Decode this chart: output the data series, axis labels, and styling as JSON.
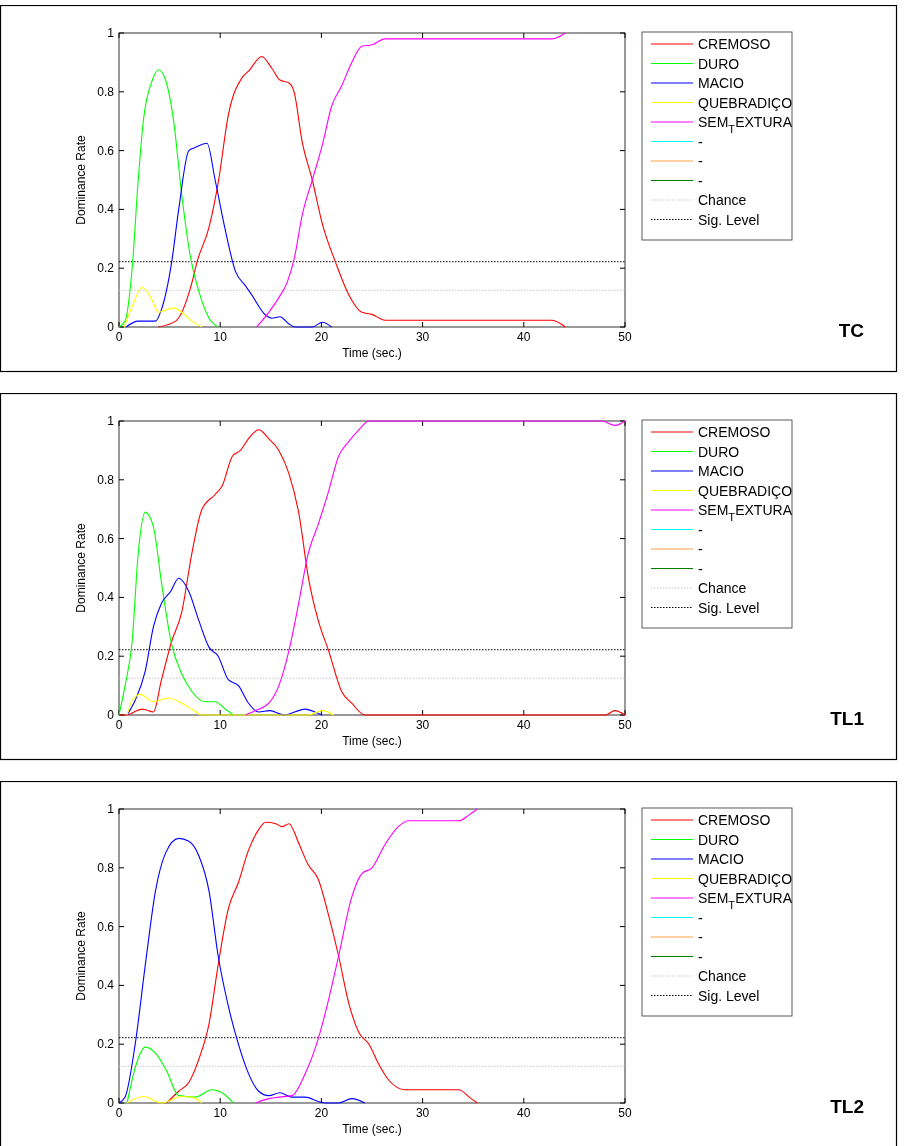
{
  "chart_data": [
    {
      "type": "line",
      "annotations": [
        "TC"
      ],
      "xlabel": "Time (sec.)",
      "ylabel": "Dominance Rate",
      "xlim": [
        0,
        50
      ],
      "ylim": [
        0,
        1
      ],
      "xticks": [
        0,
        10,
        20,
        30,
        40,
        50
      ],
      "yticks": [
        0,
        0.2,
        0.4,
        0.6,
        0.8,
        1
      ],
      "legend": "right",
      "grid": false,
      "marker": "none",
      "line_style": "solid",
      "ref_lines": [
        {
          "axis": "y",
          "value": 0.125,
          "label": "Chance",
          "color": "#c8c8c8",
          "line_style": "dotted"
        },
        {
          "axis": "y",
          "value": 0.222,
          "label": "Sig. Level",
          "color": "#000000",
          "line_style": "dotted"
        }
      ],
      "series": [
        {
          "name": "CREMOSO",
          "color": "#ff0000",
          "x": [
            3.9,
            5.6,
            7.2,
            7.7,
            8.9,
            9.8,
            10.8,
            12.2,
            12.8,
            14.1,
            15.1,
            15.9,
            16.8,
            17.3,
            18.1,
            19.1,
            20.1,
            21.4,
            22.7,
            24,
            25,
            26.3,
            42.8,
            44.1
          ],
          "values": [
            0,
            0.02,
            0.15,
            0.22,
            0.34,
            0.49,
            0.72,
            0.85,
            0.87,
            0.92,
            0.88,
            0.84,
            0.83,
            0.8,
            0.63,
            0.5,
            0.35,
            0.22,
            0.11,
            0.05,
            0.043,
            0.023,
            0.023,
            0
          ]
        },
        {
          "name": "DURO",
          "color": "#00ff00",
          "x": [
            0,
            0.6,
            1.3,
            1.9,
            2.4,
            3.3,
            3.9,
            4.6,
            5.4,
            6.2,
            7,
            7.9,
            8.9,
            9.8
          ],
          "values": [
            0,
            0.02,
            0.2,
            0.5,
            0.7,
            0.84,
            0.875,
            0.84,
            0.7,
            0.45,
            0.25,
            0.12,
            0.03,
            0
          ]
        },
        {
          "name": "MACIO",
          "color": "#0000ff",
          "x": [
            0.7,
            1.9,
            3.6,
            4.2,
            5.2,
            5.9,
            6.9,
            7.5,
            8.7,
            9.5,
            10.5,
            11.5,
            12.5,
            13.1,
            14.5,
            15.1,
            15.9,
            16.8,
            17.4,
            19.1,
            20.1,
            21
          ],
          "values": [
            0,
            0.02,
            0.02,
            0.06,
            0.22,
            0.4,
            0.6,
            0.61,
            0.625,
            0.5,
            0.33,
            0.19,
            0.14,
            0.11,
            0.04,
            0.03,
            0.035,
            0.01,
            0,
            0,
            0.016,
            0
          ]
        },
        {
          "name": "QUEBRADIÇO",
          "color": "#ffff00",
          "x": [
            0.5,
            1.3,
            2.3,
            3.3,
            3.9,
            5.4,
            6.2,
            7.2,
            8.2
          ],
          "values": [
            0,
            0.07,
            0.135,
            0.09,
            0.05,
            0.065,
            0.05,
            0.02,
            0
          ]
        },
        {
          "name": "SEM$_{T}$EXTURA",
          "color": "#ff00ff",
          "x": [
            13.6,
            14.8,
            15.8,
            16.6,
            17.3,
            18.1,
            19.1,
            20.1,
            21,
            22,
            23,
            24,
            25,
            26.3,
            42.8,
            44.1
          ],
          "values": [
            0,
            0.05,
            0.1,
            0.15,
            0.23,
            0.38,
            0.5,
            0.62,
            0.75,
            0.82,
            0.9,
            0.955,
            0.96,
            0.98,
            0.98,
            1
          ]
        },
        {
          "name": "-",
          "color": "#00ffff"
        },
        {
          "name": "-",
          "color": "#ffa040"
        },
        {
          "name": "-",
          "color": "#008000"
        }
      ]
    },
    {
      "type": "line",
      "annotations": [
        "TL1"
      ],
      "xlabel": "Time (sec.)",
      "ylabel": "Dominance Rate",
      "xlim": [
        0,
        50
      ],
      "ylim": [
        0,
        1
      ],
      "xticks": [
        0,
        10,
        20,
        30,
        40,
        50
      ],
      "yticks": [
        0,
        0.2,
        0.4,
        0.6,
        0.8,
        1
      ],
      "legend": "right",
      "grid": false,
      "marker": "none",
      "line_style": "solid",
      "ref_lines": [
        {
          "axis": "y",
          "value": 0.125,
          "label": "Chance",
          "color": "#c8c8c8",
          "line_style": "dotted"
        },
        {
          "axis": "y",
          "value": 0.222,
          "label": "Sig. Level",
          "color": "#000000",
          "line_style": "dotted"
        }
      ],
      "series": [
        {
          "name": "CREMOSO",
          "color": "#ff0000",
          "x": [
            0,
            0.7,
            2.3,
            3.4,
            4.2,
            5.2,
            6.2,
            7.2,
            8.2,
            9.5,
            10.2,
            11.2,
            12,
            12.8,
            13.8,
            14.8,
            15.8,
            16.8,
            17.8,
            18.7,
            19.7,
            20.7,
            22,
            23,
            24.3,
            48.1,
            49,
            50
          ],
          "values": [
            0,
            0,
            0.02,
            0.01,
            0.12,
            0.25,
            0.35,
            0.55,
            0.7,
            0.75,
            0.78,
            0.88,
            0.9,
            0.94,
            0.97,
            0.94,
            0.9,
            0.82,
            0.68,
            0.47,
            0.32,
            0.22,
            0.08,
            0.04,
            0,
            0,
            0.015,
            0
          ]
        },
        {
          "name": "DURO",
          "color": "#00ff00",
          "x": [
            0,
            0.6,
            1.3,
            1.9,
            2.6,
            3.4,
            4.2,
            5.2,
            6.2,
            7.2,
            8.5,
            9.5,
            10.5,
            11.3
          ],
          "values": [
            0,
            0.1,
            0.25,
            0.55,
            0.69,
            0.64,
            0.45,
            0.24,
            0.14,
            0.08,
            0.045,
            0.045,
            0.02,
            0
          ]
        },
        {
          "name": "MACIO",
          "color": "#0000ff",
          "x": [
            0.8,
            1.6,
            2.6,
            3.4,
            4.2,
            5.1,
            5.9,
            6.9,
            7.9,
            8.9,
            9.8,
            10.8,
            11.8,
            12.8,
            13.8,
            14.9,
            16.3,
            18.4,
            19.7,
            20.1
          ],
          "values": [
            0,
            0.05,
            0.15,
            0.3,
            0.38,
            0.42,
            0.465,
            0.42,
            0.32,
            0.23,
            0.2,
            0.12,
            0.1,
            0.04,
            0.01,
            0.015,
            0,
            0.02,
            0.005,
            0
          ]
        },
        {
          "name": "QUEBRADIÇO",
          "color": "#ffff00",
          "x": [
            0.8,
            1.3,
            2.1,
            3.4,
            4.9,
            6.2,
            7.2,
            8.2,
            18.7,
            20.1,
            21.2
          ],
          "values": [
            0,
            0.05,
            0.07,
            0.045,
            0.058,
            0.04,
            0.02,
            0,
            0,
            0.015,
            0
          ]
        },
        {
          "name": "SEM$_{T}$EXTURA",
          "color": "#ff00ff",
          "x": [
            12.5,
            13.5,
            14.8,
            15.8,
            16.8,
            17.7,
            18.7,
            19.7,
            20.7,
            21.7,
            22.7,
            23.7,
            24.7,
            47.7,
            49,
            50
          ],
          "values": [
            0,
            0.015,
            0.04,
            0.1,
            0.22,
            0.37,
            0.55,
            0.65,
            0.76,
            0.88,
            0.93,
            0.97,
            1,
            1,
            0.985,
            1
          ]
        },
        {
          "name": "-",
          "color": "#00ffff"
        },
        {
          "name": "-",
          "color": "#ffa040"
        },
        {
          "name": "-",
          "color": "#008000"
        }
      ]
    },
    {
      "type": "line",
      "annotations": [
        "TL2"
      ],
      "xlabel": "Time (sec.)",
      "ylabel": "Dominance Rate",
      "xlim": [
        0,
        50
      ],
      "ylim": [
        0,
        1
      ],
      "xticks": [
        0,
        10,
        20,
        30,
        40,
        50
      ],
      "yticks": [
        0,
        0.2,
        0.4,
        0.6,
        0.8,
        1
      ],
      "legend": "right",
      "grid": false,
      "marker": "none",
      "line_style": "solid",
      "ref_lines": [
        {
          "axis": "y",
          "value": 0.125,
          "label": "Chance",
          "color": "#c8c8c8",
          "line_style": "dotted"
        },
        {
          "axis": "y",
          "value": 0.222,
          "label": "Sig. Level",
          "color": "#000000",
          "line_style": "dotted"
        }
      ],
      "series": [
        {
          "name": "CREMOSO",
          "color": "#ff0000",
          "x": [
            4.7,
            5.9,
            6.9,
            7.9,
            8.9,
            9.8,
            10.8,
            11.8,
            12.8,
            13.8,
            14.5,
            15.5,
            16.1,
            16.8,
            17.8,
            18.7,
            19.7,
            20.7,
            21.7,
            22.7,
            23.7,
            24.7,
            25.7,
            26.6,
            28.3,
            33.6,
            34.6,
            35.4
          ],
          "values": [
            0,
            0.04,
            0.07,
            0.15,
            0.27,
            0.47,
            0.66,
            0.75,
            0.86,
            0.93,
            0.955,
            0.95,
            0.94,
            0.95,
            0.88,
            0.81,
            0.76,
            0.64,
            0.5,
            0.34,
            0.24,
            0.2,
            0.13,
            0.08,
            0.045,
            0.045,
            0.02,
            0
          ]
        },
        {
          "name": "DURO",
          "color": "#00ff00",
          "x": [
            0.8,
            1.6,
            2.6,
            3.6,
            4.7,
            5.9,
            7.5,
            9.2,
            10.2,
            11.3
          ],
          "values": [
            0,
            0.12,
            0.19,
            0.17,
            0.11,
            0.025,
            0.02,
            0.045,
            0.035,
            0
          ]
        },
        {
          "name": "MACIO",
          "color": "#0000ff",
          "x": [
            0,
            0.6,
            1.6,
            2.6,
            3.6,
            4.6,
            5.9,
            6.9,
            7.9,
            8.9,
            9.8,
            10.8,
            11.8,
            12.8,
            13.8,
            14.8,
            15.9,
            17.1,
            18.4,
            19.7,
            20.4,
            21.7,
            23,
            24.3
          ],
          "values": [
            0,
            0.02,
            0.2,
            0.47,
            0.72,
            0.85,
            0.9,
            0.89,
            0.84,
            0.72,
            0.5,
            0.33,
            0.2,
            0.1,
            0.04,
            0.025,
            0.035,
            0.02,
            0.02,
            0.005,
            0,
            0,
            0.015,
            0
          ]
        },
        {
          "name": "QUEBRADIÇO",
          "color": "#ffff00",
          "x": [
            0.8,
            2.4,
            4.2,
            6.2,
            7.2,
            8.2
          ],
          "values": [
            0,
            0.022,
            0,
            0.022,
            0.02,
            0
          ]
        },
        {
          "name": "SEM$_{T}$EXTURA",
          "color": "#ff00ff",
          "x": [
            13.5,
            14.8,
            15.8,
            17.1,
            18.4,
            19.7,
            20.7,
            21.7,
            23,
            24,
            25,
            26.3,
            27.6,
            28.6,
            33.6,
            34.6,
            35.4
          ],
          "values": [
            0,
            0.015,
            0.02,
            0.025,
            0.1,
            0.22,
            0.35,
            0.5,
            0.7,
            0.78,
            0.8,
            0.88,
            0.94,
            0.96,
            0.96,
            0.98,
            1
          ]
        },
        {
          "name": "-",
          "color": "#00ffff"
        },
        {
          "name": "-",
          "color": "#ffa040"
        },
        {
          "name": "-",
          "color": "#008000"
        }
      ]
    }
  ]
}
